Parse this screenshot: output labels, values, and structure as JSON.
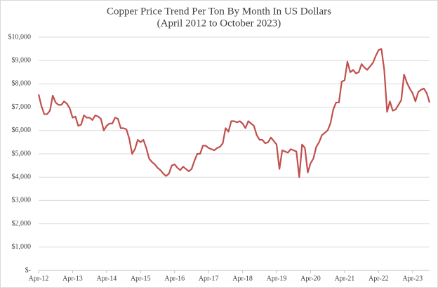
{
  "chart_data": {
    "type": "line",
    "title": "Copper Price Trend Per Ton By Month In US Dollars",
    "subtitle": "(April 2012 to October 2023)",
    "categories": [
      "Apr-12",
      null,
      null,
      null,
      null,
      null,
      null,
      null,
      null,
      null,
      null,
      null,
      "Apr-13",
      null,
      null,
      null,
      null,
      null,
      null,
      null,
      null,
      null,
      null,
      null,
      "Apr-14",
      null,
      null,
      null,
      null,
      null,
      null,
      null,
      null,
      null,
      null,
      null,
      "Apr-15",
      null,
      null,
      null,
      null,
      null,
      null,
      null,
      null,
      null,
      null,
      null,
      "Apr-16",
      null,
      null,
      null,
      null,
      null,
      null,
      null,
      null,
      null,
      null,
      null,
      "Apr-17",
      null,
      null,
      null,
      null,
      null,
      null,
      null,
      null,
      null,
      null,
      null,
      "Apr-18",
      null,
      null,
      null,
      null,
      null,
      null,
      null,
      null,
      null,
      null,
      null,
      "Apr-19",
      null,
      null,
      null,
      null,
      null,
      null,
      null,
      null,
      null,
      null,
      null,
      "Apr-20",
      null,
      null,
      null,
      null,
      null,
      null,
      null,
      null,
      null,
      null,
      null,
      "Apr-21",
      null,
      null,
      null,
      null,
      null,
      null,
      null,
      null,
      null,
      null,
      null,
      "Apr-22",
      null,
      null,
      null,
      null,
      null,
      null,
      null,
      null,
      null,
      null,
      null,
      "Apr-23",
      null,
      null,
      null,
      null,
      null,
      null
    ],
    "series": [
      {
        "name": "Copper",
        "color": "#c0504d",
        "values": [
          7550,
          7050,
          6700,
          6700,
          6850,
          7500,
          7200,
          7100,
          7100,
          7250,
          7150,
          6950,
          6550,
          6600,
          6200,
          6250,
          6650,
          6550,
          6550,
          6450,
          6650,
          6600,
          6500,
          6000,
          6200,
          6300,
          6300,
          6550,
          6500,
          6100,
          6100,
          6050,
          5650,
          5000,
          5200,
          5600,
          5500,
          5600,
          5250,
          4800,
          4650,
          4550,
          4400,
          4300,
          4150,
          4050,
          4150,
          4500,
          4550,
          4400,
          4300,
          4450,
          4350,
          4250,
          4350,
          4700,
          5000,
          5000,
          5350,
          5350,
          5250,
          5200,
          5150,
          5250,
          5300,
          5450,
          6100,
          5950,
          6400,
          6400,
          6350,
          6400,
          6300,
          6100,
          6400,
          6300,
          6200,
          5800,
          5600,
          5600,
          5450,
          5500,
          5700,
          5550,
          5400,
          4350,
          5150,
          5100,
          5050,
          5200,
          5150,
          5100,
          4000,
          5400,
          5250,
          4200,
          4600,
          4800,
          5300,
          5500,
          5800,
          5900,
          6000,
          6300,
          6900,
          7200,
          7200,
          8100,
          8150,
          8950,
          8500,
          8600,
          8450,
          8500,
          8850,
          8700,
          8600,
          8750,
          8900,
          9200,
          9450,
          9500,
          8600,
          6800,
          7250,
          6850,
          6900,
          7100,
          7300,
          8400,
          8050,
          7800,
          7600,
          7250,
          7650,
          7750,
          7800,
          7600,
          7200
        ]
      }
    ],
    "ylim": [
      0,
      10000
    ],
    "yticks": [
      {
        "value": 0,
        "label": "$-"
      },
      {
        "value": 1000,
        "label": "$1,000"
      },
      {
        "value": 2000,
        "label": "$2,000"
      },
      {
        "value": 3000,
        "label": "$3,000"
      },
      {
        "value": 4000,
        "label": "$4,000"
      },
      {
        "value": 5000,
        "label": "$5,000"
      },
      {
        "value": 6000,
        "label": "$6,000"
      },
      {
        "value": 7000,
        "label": "$7,000"
      },
      {
        "value": 8000,
        "label": "$8,000"
      },
      {
        "value": 9000,
        "label": "$9,000"
      },
      {
        "value": 10000,
        "label": "$10,000"
      }
    ],
    "grid": true
  }
}
